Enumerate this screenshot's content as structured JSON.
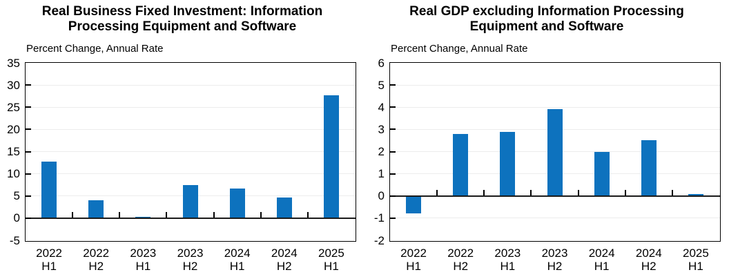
{
  "colors": {
    "bar": "#0d72be",
    "axis": "#000000",
    "zero_line": "#1a1a1a",
    "grid": "#ececec",
    "text": "#000000"
  },
  "chart_data": [
    {
      "type": "bar",
      "title": "Real Business Fixed Investment: Information Processing Equipment and Software",
      "title_line1": "Real Business Fixed Investment: Information",
      "title_line2": "Processing Equipment and Software",
      "ylabel": "Percent Change, Annual Rate",
      "xlabel": "",
      "categories": [
        "2022 H1",
        "2022 H2",
        "2023 H1",
        "2023 H2",
        "2024 H1",
        "2024 H2",
        "2025 H1"
      ],
      "values": [
        12.7,
        4.0,
        0.1,
        7.5,
        6.7,
        4.7,
        27.7
      ],
      "ylim": [
        -5,
        35
      ],
      "ytick_step": 5,
      "grid": true,
      "legend": "none"
    },
    {
      "type": "bar",
      "title": "Real GDP excluding Information Processing Equipment and Software",
      "title_line1": "Real GDP excluding Information Processing",
      "title_line2": "Equipment and Software",
      "ylabel": "Percent Change, Annual Rate",
      "xlabel": "",
      "categories": [
        "2022 H1",
        "2022 H2",
        "2023 H1",
        "2023 H2",
        "2024 H1",
        "2024 H2",
        "2025 H1"
      ],
      "values": [
        -0.8,
        2.8,
        2.9,
        3.9,
        2.0,
        2.5,
        0.1
      ],
      "ylim": [
        -2,
        6
      ],
      "ytick_step": 1,
      "grid": true,
      "legend": "none"
    }
  ]
}
